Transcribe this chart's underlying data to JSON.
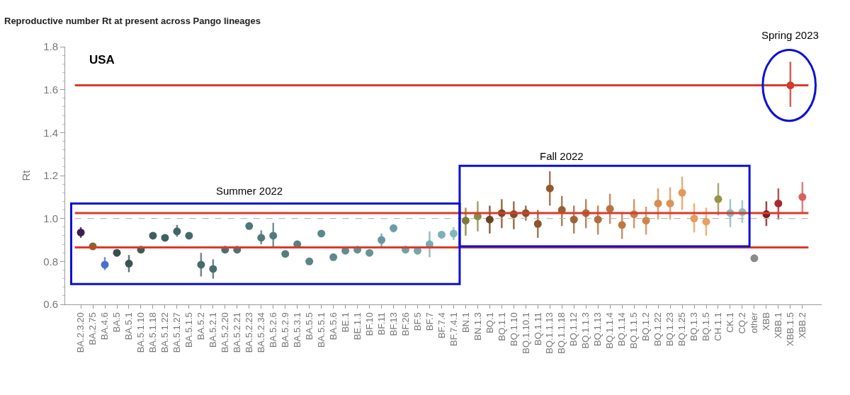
{
  "chart_data": {
    "type": "scatter",
    "title": "Reproductive number Rt at present across Pango lineages",
    "ylabel": "Rt",
    "categories": [
      "BA.2.3.20",
      "BA.2.75",
      "BA.4.6",
      "BA.5",
      "BA.5.1",
      "BA.5.1.10",
      "BA.5.1.18",
      "BA.5.1.22",
      "BA.5.1.27",
      "BA.5.1.5",
      "BA.5.2",
      "BA.5.2.1",
      "BA.5.2.20",
      "BA.5.2.21",
      "BA.5.2.23",
      "BA.5.2.34",
      "BA.5.2.6",
      "BA.5.2.9",
      "BA.5.3.1",
      "BA.5.5",
      "BA.5.5.1",
      "BA.5.6",
      "BE.1",
      "BE.1.1",
      "BF.10",
      "BF.11",
      "BF.13",
      "BF.26",
      "BF.5",
      "BF.7",
      "BF.7.4",
      "BF.7.4.1",
      "BN.1",
      "BN.1.3",
      "BQ.1",
      "BQ.1.1",
      "BQ.1.10",
      "BQ.1.10.1",
      "BQ.1.11",
      "BQ.1.1.13",
      "BQ.1.1.18",
      "BQ.1.12",
      "BQ.1.1.3",
      "BQ.1.13",
      "BQ.1.1.4",
      "BQ.1.14",
      "BQ.1.1.5",
      "BQ.1.2",
      "BQ.1.22",
      "BQ.1.23",
      "BQ.1.25",
      "BQ.1.3",
      "BQ.1.5",
      "CH.1.1",
      "CK.1",
      "CQ.2",
      "other",
      "XBB",
      "XBB.1",
      "XBB.1.5",
      "XBB.2"
    ],
    "values": [
      0.935,
      0.87,
      0.785,
      0.84,
      0.79,
      0.855,
      0.92,
      0.91,
      0.94,
      0.92,
      0.785,
      0.765,
      0.855,
      0.855,
      0.965,
      0.91,
      0.92,
      0.835,
      0.88,
      0.8,
      0.93,
      0.82,
      0.85,
      0.855,
      0.84,
      0.9,
      0.955,
      0.855,
      0.85,
      0.88,
      0.925,
      0.93,
      0.99,
      1.01,
      0.995,
      1.025,
      1.02,
      1.025,
      0.975,
      1.14,
      1.04,
      0.995,
      1.025,
      0.995,
      1.045,
      0.97,
      1.02,
      0.99,
      1.07,
      1.07,
      1.12,
      1.0,
      0.985,
      1.09,
      1.025,
      1.03,
      0.815,
      1.02,
      1.07,
      1.62,
      1.1
    ],
    "errors": [
      [
        0.91,
        0.96
      ],
      [
        0.86,
        0.88
      ],
      [
        0.76,
        0.82
      ],
      [
        0.83,
        0.85
      ],
      [
        0.75,
        0.83
      ],
      [
        0.845,
        0.865
      ],
      [
        0.905,
        0.935
      ],
      [
        0.9,
        0.92
      ],
      [
        0.915,
        0.97
      ],
      [
        0.905,
        0.935
      ],
      [
        0.73,
        0.84
      ],
      [
        0.72,
        0.81
      ],
      [
        0.845,
        0.865
      ],
      [
        0.845,
        0.865
      ],
      [
        0.95,
        0.98
      ],
      [
        0.88,
        0.945
      ],
      [
        0.87,
        0.98
      ],
      [
        0.825,
        0.845
      ],
      [
        0.87,
        0.89
      ],
      [
        0.79,
        0.81
      ],
      [
        0.915,
        0.945
      ],
      [
        0.81,
        0.83
      ],
      [
        0.84,
        0.86
      ],
      [
        0.845,
        0.865
      ],
      [
        0.83,
        0.85
      ],
      [
        0.87,
        0.93
      ],
      [
        0.935,
        0.97
      ],
      [
        0.845,
        0.865
      ],
      [
        0.84,
        0.86
      ],
      [
        0.82,
        0.94
      ],
      [
        0.905,
        0.94
      ],
      [
        0.9,
        0.96
      ],
      [
        0.92,
        1.05
      ],
      [
        0.94,
        1.08
      ],
      [
        0.93,
        1.06
      ],
      [
        0.955,
        1.09
      ],
      [
        0.95,
        1.08
      ],
      [
        0.99,
        1.06
      ],
      [
        0.91,
        1.04
      ],
      [
        1.06,
        1.22
      ],
      [
        0.965,
        1.105
      ],
      [
        0.93,
        1.06
      ],
      [
        0.955,
        1.09
      ],
      [
        0.925,
        1.06
      ],
      [
        0.975,
        1.115
      ],
      [
        0.905,
        1.03
      ],
      [
        0.955,
        1.09
      ],
      [
        0.925,
        1.055
      ],
      [
        0.995,
        1.14
      ],
      [
        0.995,
        1.145
      ],
      [
        1.04,
        1.195
      ],
      [
        0.935,
        1.07
      ],
      [
        0.92,
        1.05
      ],
      [
        1.015,
        1.165
      ],
      [
        0.96,
        1.09
      ],
      [
        0.98,
        1.085
      ],
      null,
      [
        0.965,
        1.08
      ],
      [
        0.995,
        1.14
      ],
      [
        1.52,
        1.73
      ],
      [
        1.025,
        1.17
      ]
    ],
    "colors": [
      "#3a1f52",
      "#7d6a2e",
      "#4a6fd2",
      "#35504f",
      "#3a5556",
      "#3f5b5c",
      "#3f5e5f",
      "#416162",
      "#446566",
      "#466869",
      "#486b6c",
      "#4a6d6e",
      "#4c7071",
      "#4e7374",
      "#507677",
      "#527879",
      "#547b7c",
      "#567e7f",
      "#588182",
      "#5a8485",
      "#5c8788",
      "#5e8a8c",
      "#608d90",
      "#629094",
      "#659498",
      "#68989d",
      "#6c9da2",
      "#70a2a8",
      "#74a7ad",
      "#78acb2",
      "#7cb1b8",
      "#80b6bd",
      "#7e7a3a",
      "#8b8a44",
      "#6a4420",
      "#7a4a22",
      "#804e24",
      "#86522a",
      "#8c562c",
      "#92592e",
      "#985e30",
      "#a06234",
      "#a86838",
      "#b06d3c",
      "#b87240",
      "#c07844",
      "#c87e48",
      "#d0844c",
      "#d88c50",
      "#de9254",
      "#e49858",
      "#e69c5c",
      "#e8a060",
      "#959447",
      "#86b8c2",
      "#8cbcc6",
      "#8a8a8a",
      "#7c1e1e",
      "#a52a2a",
      "#d2382c",
      "#d96060"
    ],
    "ylim": [
      0.6,
      1.8
    ],
    "yticks": [
      0.6,
      0.8,
      {
        "value": 1,
        "label": "1.0"
      },
      1.2,
      1.4,
      1.6,
      1.8
    ],
    "ref_lines": [
      {
        "axis": "y",
        "value": 1.0,
        "color": "#bbbbbb",
        "line_style": "dashed"
      },
      {
        "axis": "y",
        "value": 1.62,
        "color": "#dc3a2a"
      },
      {
        "axis": "y",
        "value": 1.025,
        "color": "#dc3a2a"
      },
      {
        "axis": "y",
        "value": 0.865,
        "color": "#dc3a2a"
      }
    ],
    "annotations": [
      "USA",
      "Summer 2022",
      "Fall 2022",
      "Spring 2023"
    ],
    "marker": "circle",
    "grid": false
  }
}
